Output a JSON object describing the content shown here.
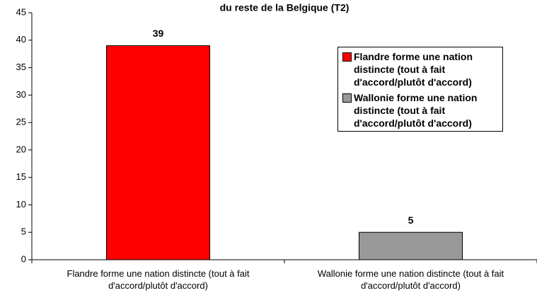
{
  "chart_data": {
    "type": "bar",
    "title": "du reste de la Belgique (T2)",
    "categories": [
      "Flandre forme une nation distincte (tout à fait d'accord/plutôt d'accord)",
      "Wallonie forme une nation distincte (tout à fait d'accord/plutôt d'accord)"
    ],
    "series": [
      {
        "name": "Flandre forme une nation distincte (tout à fait d'accord/plutôt d'accord)",
        "color": "#ff0000",
        "values": [
          39,
          null
        ]
      },
      {
        "name": "Wallonie forme une nation distincte (tout à fait d'accord/plutôt d'accord)",
        "color": "#999999",
        "values": [
          null,
          5
        ]
      }
    ],
    "ylim": [
      0,
      45
    ],
    "yticks": [
      0,
      5,
      10,
      15,
      20,
      25,
      30,
      35,
      40,
      45
    ],
    "grid": false,
    "legend": "upper right"
  }
}
